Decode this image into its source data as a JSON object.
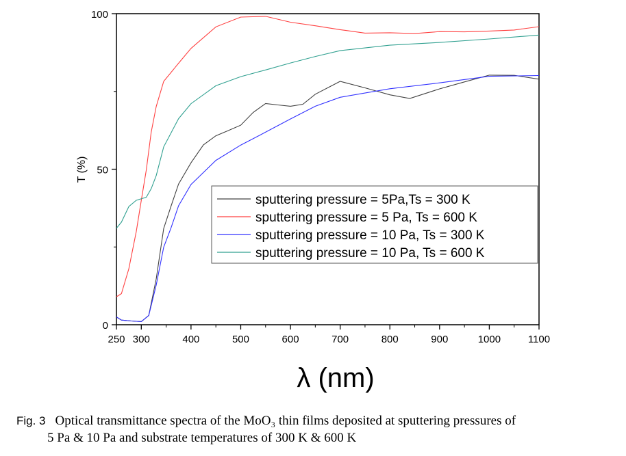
{
  "chart_data": {
    "type": "line",
    "title": "",
    "xlabel": "λ (nm)",
    "ylabel": "T (%)",
    "xlim": [
      250,
      1100
    ],
    "ylim": [
      0,
      100
    ],
    "xticks": [
      300,
      400,
      500,
      600,
      700,
      800,
      900,
      1000,
      1100
    ],
    "xtick_first": 250,
    "yticks": [
      0,
      50,
      100
    ],
    "legend_position": "center-right",
    "series": [
      {
        "name": "sputtering pressure =  5Pa,Ts = 300 K",
        "color": "#404040",
        "x": [
          250,
          260,
          280,
          300,
          315,
          330,
          345,
          360,
          375,
          400,
          425,
          450,
          475,
          500,
          525,
          550,
          575,
          600,
          625,
          650,
          700,
          750,
          800,
          840,
          900,
          950,
          1000,
          1050,
          1100
        ],
        "y": [
          2.5,
          1.5,
          1.2,
          1,
          3,
          15,
          31,
          38,
          45,
          52,
          58,
          61,
          62.5,
          64,
          68,
          71,
          70.8,
          70.5,
          71,
          74,
          78,
          76,
          74,
          73,
          76,
          78,
          80,
          80,
          79
        ]
      },
      {
        "name": "sputtering pressure = 5 Pa, Ts = 600 K",
        "color": "#ff4040",
        "x": [
          250,
          260,
          275,
          290,
          300,
          310,
          320,
          330,
          345,
          375,
          400,
          450,
          500,
          550,
          600,
          650,
          700,
          750,
          800,
          850,
          900,
          950,
          1000,
          1050,
          1100
        ],
        "y": [
          9,
          10,
          18,
          30,
          40,
          50,
          62,
          70,
          78,
          84,
          89,
          96,
          99,
          99,
          97,
          96,
          95,
          94,
          94,
          93.5,
          94,
          94,
          94.5,
          95,
          96
        ]
      },
      {
        "name": "sputtering pressure = 10 Pa, Ts = 300 K",
        "color": "#3030ff",
        "x": [
          250,
          260,
          280,
          300,
          315,
          330,
          345,
          360,
          375,
          400,
          450,
          500,
          550,
          600,
          650,
          700,
          800,
          900,
          1000,
          1100
        ],
        "y": [
          2.5,
          1.5,
          1.2,
          1,
          3,
          13,
          25,
          31,
          38,
          45,
          53,
          58,
          62,
          66,
          70,
          73,
          76,
          78,
          80,
          80
        ]
      },
      {
        "name": "sputtering pressure = 10 Pa,  Ts = 600 K",
        "color": "#30a090",
        "x": [
          250,
          260,
          275,
          290,
          310,
          320,
          330,
          345,
          375,
          400,
          450,
          500,
          550,
          600,
          650,
          700,
          800,
          900,
          1000,
          1100
        ],
        "y": [
          31,
          33,
          38,
          40,
          41,
          44,
          48,
          57,
          66,
          71,
          77,
          80,
          82,
          84,
          86,
          88,
          90,
          91,
          92,
          93
        ]
      }
    ]
  },
  "caption": {
    "fig": "Fig. 3",
    "line1": "Optical transmittance spectra of the MoO₃ thin films deposited at sputtering pressures of",
    "line2": "5 Pa & 10 Pa  and substrate temperatures of  300 K & 600 K"
  }
}
